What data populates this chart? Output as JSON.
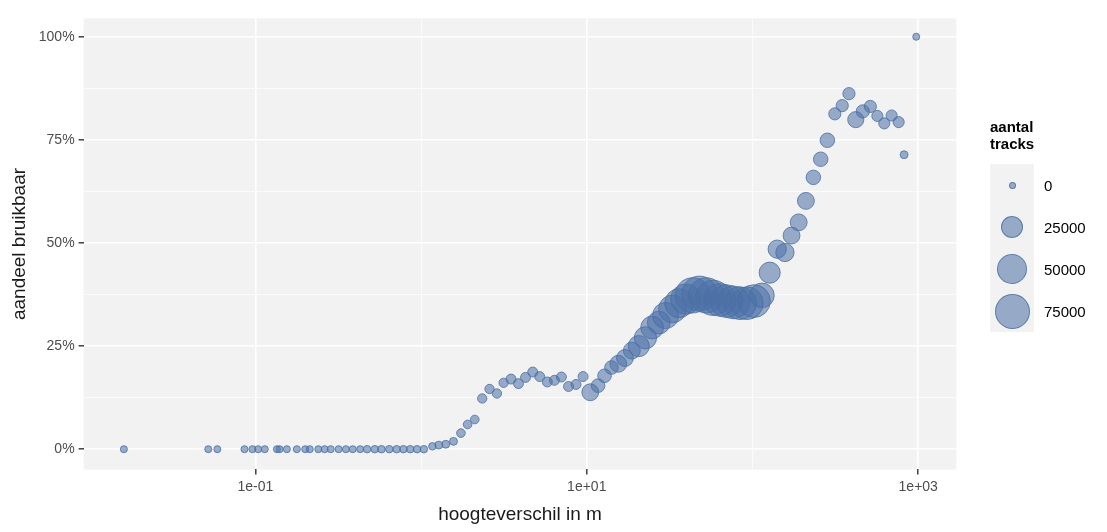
{
  "chart_data": {
    "type": "bubble",
    "xlabel": "hoogteverschil in m",
    "ylabel": "aandeel bruikbaar",
    "legend_title": "aantal\ntracks",
    "color": "#4a6fa5",
    "log": "x",
    "grid": true,
    "marker": "circle",
    "xlim": [
      0.0092,
      1700
    ],
    "xticks": [
      {
        "value": 0.1,
        "label": "1e-01"
      },
      {
        "value": 1,
        "label": null
      },
      {
        "value": 10,
        "label": "1e+01"
      },
      {
        "value": 100,
        "label": null
      },
      {
        "value": 1000,
        "label": "1e+03"
      }
    ],
    "ylim": [
      -4.9,
      104.4
    ],
    "yticks": [
      {
        "value": 0,
        "label": "0%"
      },
      {
        "value": 12.5,
        "label": null
      },
      {
        "value": 25,
        "label": "25%"
      },
      {
        "value": 37.5,
        "label": null
      },
      {
        "value": 50,
        "label": "50%"
      },
      {
        "value": 62.5,
        "label": null
      },
      {
        "value": 75,
        "label": "75%"
      },
      {
        "value": 87.5,
        "label": null
      },
      {
        "value": 100,
        "label": "100%"
      }
    ],
    "annotations": [
      "0",
      "25000",
      "50000",
      "75000"
    ],
    "x": [
      0.0161,
      0.052,
      0.059,
      0.086,
      0.096,
      0.104,
      0.114,
      0.135,
      0.14,
      0.155,
      0.178,
      0.2,
      0.213,
      0.24,
      0.262,
      0.285,
      0.318,
      0.352,
      0.387,
      0.429,
      0.472,
      0.526,
      0.577,
      0.643,
      0.713,
      0.783,
      0.861,
      0.946,
      1.04,
      1.17,
      1.28,
      1.41,
      1.57,
      1.74,
      1.91,
      2.11,
      2.34,
      2.59,
      2.87,
      3.15,
      3.49,
      3.87,
      4.27,
      4.72,
      5.2,
      5.78,
      6.38,
      7.03,
      7.76,
      8.61,
      9.5,
      10.5,
      11.7,
      12.8,
      14.1,
      15.5,
      17,
      18.7,
      20.6,
      22.6,
      24.8,
      27.2,
      29.9,
      32.9,
      36.1,
      39.6,
      43.6,
      47.9,
      52.6,
      57.8,
      63.5,
      69.7,
      76.6,
      84.1,
      92.4,
      102,
      114,
      127,
      141,
      157,
      172,
      190,
      210,
      233,
      258,
      283,
      314,
      348,
      382,
      420,
      463,
      514,
      567,
      624,
      691,
      762,
      822,
      973
    ],
    "values": [
      0,
      0,
      0,
      0,
      0,
      0,
      0,
      0,
      0,
      0,
      0,
      0,
      0,
      0,
      0,
      0,
      0,
      0,
      0,
      0,
      0,
      0,
      0,
      0,
      0,
      0,
      0,
      0,
      0,
      0.7,
      1,
      1.2,
      1.9,
      3.9,
      6,
      7.2,
      12.3,
      14.6,
      13.5,
      16.1,
      17,
      15.9,
      17.4,
      18.7,
      17.6,
      16.3,
      16.7,
      17.5,
      15.2,
      15.7,
      17.6,
      13.8,
      15.4,
      17.8,
      19.8,
      20.7,
      22.1,
      23.9,
      25,
      27,
      29.5,
      30.7,
      32.4,
      34,
      35.4,
      36.4,
      37.3,
      37.7,
      37.3,
      36.7,
      36.2,
      35.9,
      35.6,
      35.4,
      35.4,
      35.9,
      37.3,
      42.8,
      48.5,
      47.7,
      51.8,
      55,
      60.2,
      65.9,
      70.3,
      74.9,
      81.3,
      83.3,
      86.2,
      79.9,
      81.9,
      83.1,
      80.8,
      79,
      80.9,
      79.3,
      71.4,
      100
    ],
    "sizes": [
      0.04,
      0.04,
      0.04,
      0.04,
      0.04,
      0.04,
      0.04,
      0.04,
      0.04,
      0.04,
      0.04,
      0.04,
      0.04,
      0.04,
      0.04,
      0.04,
      0.04,
      0.04,
      0.04,
      0.04,
      0.045,
      0.045,
      0.045,
      0.045,
      0.045,
      0.045,
      0.045,
      0.045,
      0.045,
      0.045,
      0.05,
      0.05,
      0.05,
      0.06,
      0.06,
      0.06,
      0.07,
      0.07,
      0.07,
      0.07,
      0.08,
      0.08,
      0.08,
      0.08,
      0.08,
      0.08,
      0.08,
      0.08,
      0.08,
      0.08,
      0.08,
      0.23,
      0.15,
      0.15,
      0.15,
      0.23,
      0.23,
      0.23,
      0.36,
      0.4,
      0.42,
      0.42,
      0.55,
      0.62,
      0.68,
      0.74,
      1,
      1,
      1,
      1,
      0.87,
      0.87,
      0.87,
      0.87,
      0.87,
      0.87,
      0.49,
      0.36,
      0.27,
      0.27,
      0.23,
      0.23,
      0.23,
      0.17,
      0.17,
      0.17,
      0.12,
      0.12,
      0.12,
      0.21,
      0.14,
      0.12,
      0.1,
      0.1,
      0.1,
      0.1,
      0.05,
      0.04
    ]
  }
}
